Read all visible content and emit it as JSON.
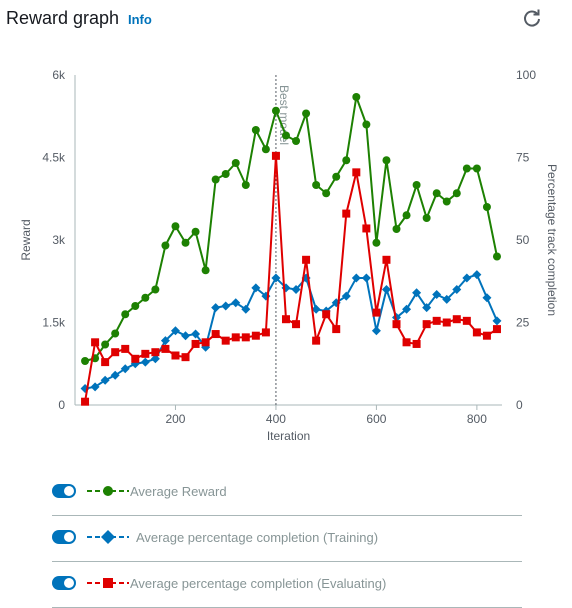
{
  "header": {
    "title": "Reward graph",
    "info_label": "Info",
    "refresh_icon": "refresh-icon"
  },
  "colors": {
    "reward": "#1d8102",
    "training": "#0073bb",
    "evaluating": "#df0000",
    "axis": "#545b64",
    "grid": "#eaeded"
  },
  "chart_data": {
    "type": "line",
    "xlabel": "Iteration",
    "ylabel_left": "Reward",
    "ylabel_right": "Percentage track completion",
    "xlim": [
      0,
      850
    ],
    "ylim_left": [
      0,
      6000
    ],
    "ylim_right": [
      0,
      100
    ],
    "xticks": [
      200,
      400,
      600,
      800
    ],
    "yticks_left": [
      {
        "value": 0,
        "label": "0"
      },
      {
        "value": 1500,
        "label": "1.5k"
      },
      {
        "value": 3000,
        "label": "3k"
      },
      {
        "value": 4500,
        "label": "4.5k"
      },
      {
        "value": 6000,
        "label": "6k"
      }
    ],
    "yticks_right": [
      0,
      25,
      50,
      75,
      100
    ],
    "marker_line": {
      "x": 400,
      "label": "Best model"
    },
    "series": [
      {
        "name": "Average Reward",
        "axis": "left",
        "marker": "circle",
        "x": [
          20,
          40,
          60,
          80,
          100,
          120,
          140,
          160,
          180,
          200,
          220,
          240,
          260,
          280,
          300,
          320,
          340,
          360,
          380,
          400,
          420,
          440,
          460,
          480,
          500,
          520,
          540,
          560,
          580,
          600,
          620,
          640,
          660,
          680,
          700,
          720,
          740,
          760,
          780,
          800,
          820,
          840
        ],
        "values": [
          800,
          850,
          1100,
          1300,
          1650,
          1800,
          1950,
          2100,
          2900,
          3250,
          2950,
          3150,
          2450,
          4100,
          4200,
          4400,
          4000,
          5000,
          4650,
          5350,
          4900,
          4800,
          5300,
          4000,
          3850,
          4150,
          4450,
          5600,
          5100,
          2950,
          4450,
          3200,
          3450,
          4000,
          3400,
          3850,
          3700,
          3850,
          4300,
          4300,
          3600,
          2700
        ]
      },
      {
        "name": "Average percentage completion (Training)",
        "axis": "right",
        "marker": "diamond",
        "x": [
          20,
          40,
          60,
          80,
          100,
          120,
          140,
          160,
          180,
          200,
          220,
          240,
          260,
          280,
          300,
          320,
          340,
          360,
          380,
          400,
          420,
          440,
          460,
          480,
          500,
          520,
          540,
          560,
          580,
          600,
          620,
          640,
          660,
          680,
          700,
          720,
          740,
          760,
          780,
          800,
          820,
          840
        ],
        "values": [
          5,
          5.5,
          7.5,
          9,
          11,
          12.5,
          13,
          14,
          19.5,
          22.5,
          21,
          21.5,
          17.5,
          29.5,
          30,
          31,
          29,
          35.5,
          33,
          38.5,
          35.5,
          35,
          38.5,
          29,
          28.5,
          31,
          33,
          38.5,
          38.5,
          22.5,
          35,
          26.5,
          29,
          34,
          29.5,
          33.5,
          32,
          35,
          38.5,
          39.5,
          32.5,
          25.5
        ]
      },
      {
        "name": "Average percentage completion (Evaluating)",
        "axis": "right",
        "marker": "square",
        "x": [
          20,
          40,
          60,
          80,
          100,
          120,
          140,
          160,
          180,
          200,
          220,
          240,
          260,
          280,
          300,
          320,
          340,
          360,
          380,
          400,
          420,
          440,
          460,
          480,
          500,
          520,
          540,
          560,
          580,
          600,
          620,
          640,
          660,
          680,
          700,
          720,
          740,
          760,
          780,
          800,
          820,
          840
        ],
        "values": [
          1,
          19,
          13,
          16,
          17,
          14,
          15.5,
          16,
          17,
          15,
          14.5,
          18.5,
          19,
          21.5,
          19.5,
          20.5,
          20.5,
          21,
          22,
          75.5,
          26,
          24.5,
          44,
          19.5,
          27.5,
          23,
          58,
          70.5,
          53.5,
          28,
          44,
          24.5,
          19,
          18.5,
          24.5,
          25.5,
          25,
          26,
          25.5,
          22,
          21,
          23
        ]
      }
    ]
  },
  "legend": [
    {
      "label": "Average Reward",
      "marker": "circle",
      "color": "#1d8102",
      "enabled": true
    },
    {
      "label": "Average percentage completion (Training)",
      "marker": "diamond",
      "color": "#0073bb",
      "enabled": true
    },
    {
      "label": "Average percentage completion (Evaluating)",
      "marker": "square",
      "color": "#df0000",
      "enabled": true
    }
  ]
}
